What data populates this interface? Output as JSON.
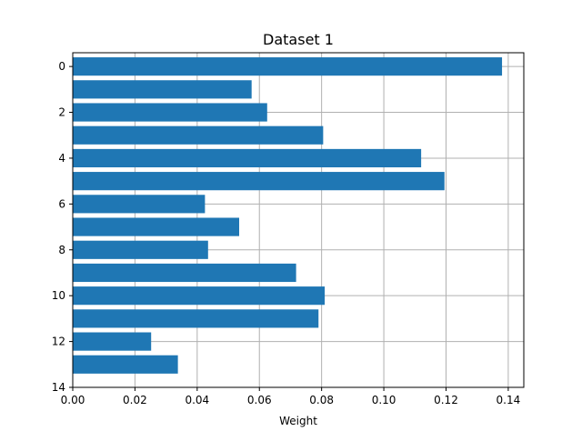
{
  "chart_data": {
    "type": "bar",
    "orientation": "horizontal",
    "title": "Dataset 1",
    "xlabel": "Weight",
    "ylabel": "",
    "categories": [
      0,
      1,
      2,
      3,
      4,
      5,
      6,
      7,
      8,
      9,
      10,
      11,
      12,
      13
    ],
    "values": [
      0.138,
      0.0575,
      0.0625,
      0.0805,
      0.112,
      0.1195,
      0.0425,
      0.0535,
      0.0435,
      0.0718,
      0.081,
      0.079,
      0.0252,
      0.0338
    ],
    "xlim": [
      0,
      0.145
    ],
    "ylim": [
      14,
      -0.6
    ],
    "xticks": [
      "0.00",
      "0.02",
      "0.04",
      "0.06",
      "0.08",
      "0.10",
      "0.12",
      "0.14"
    ],
    "yticks": [
      "0",
      "2",
      "4",
      "6",
      "8",
      "10",
      "12",
      "14"
    ],
    "grid": true,
    "bar_color": "#1f77b4"
  }
}
